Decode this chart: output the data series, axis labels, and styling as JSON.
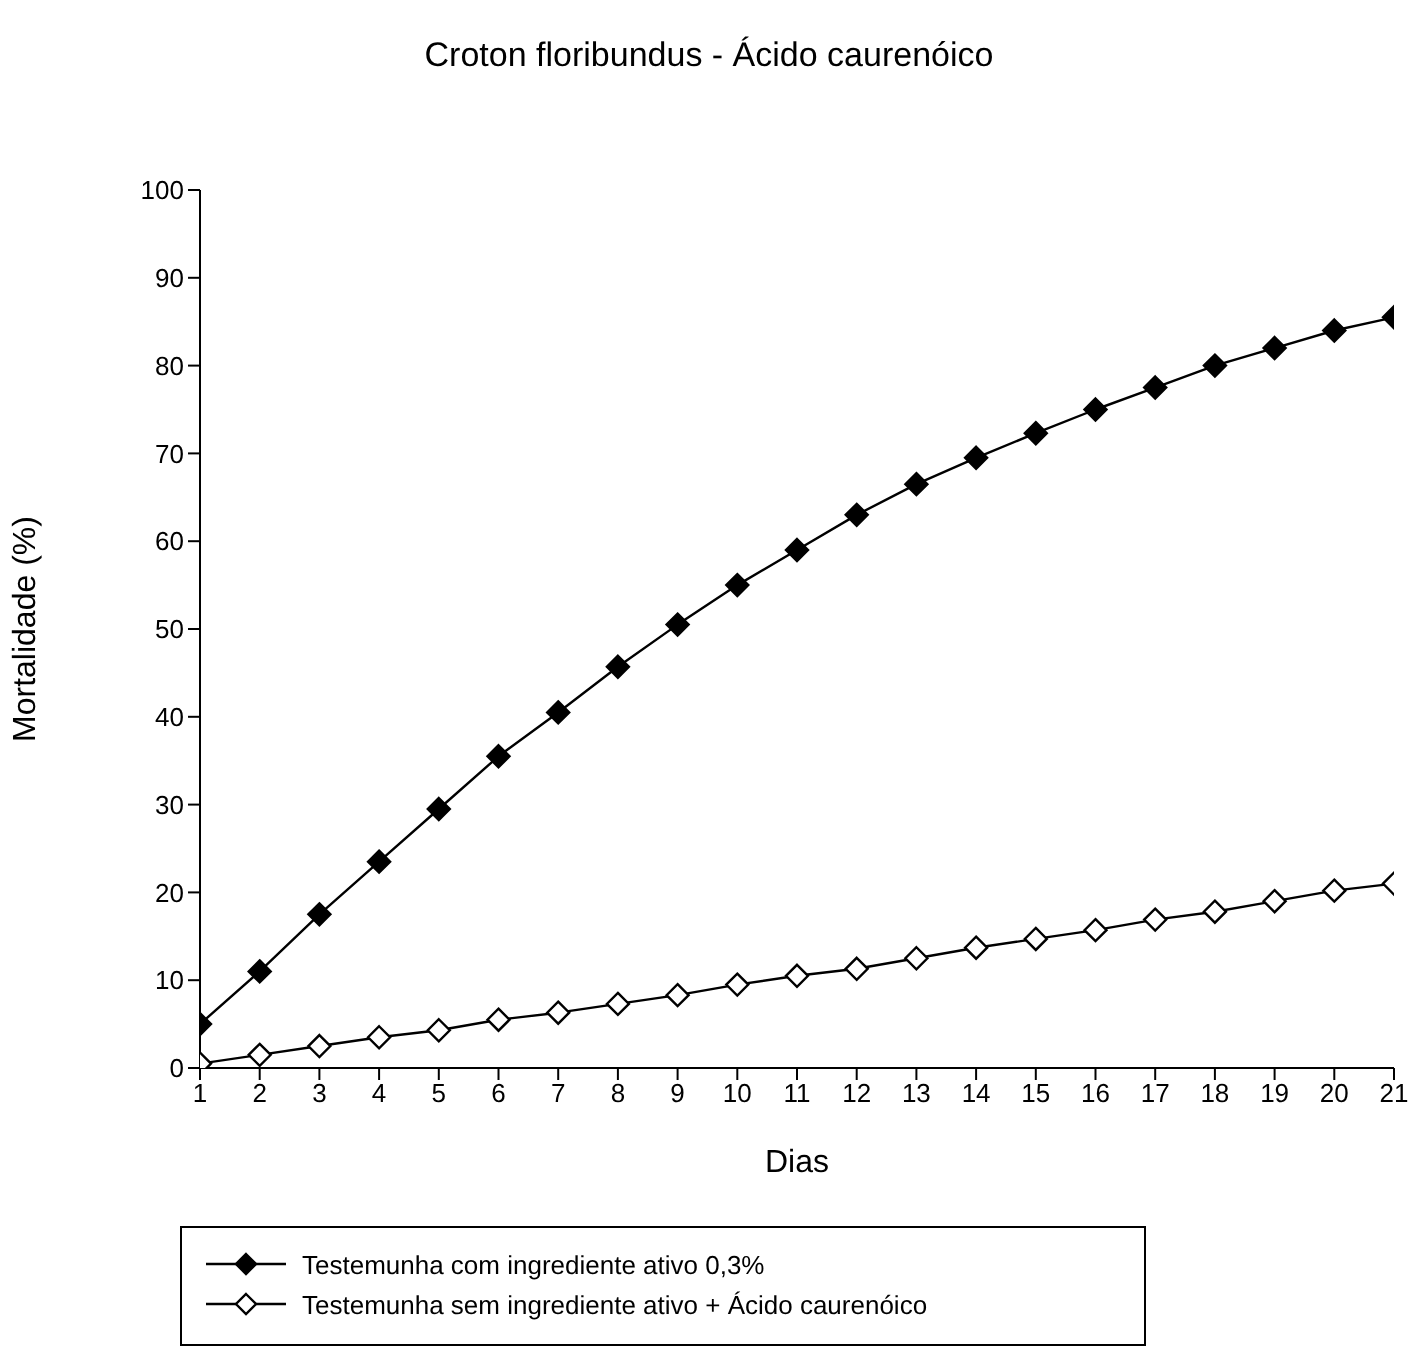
{
  "chart_data": {
    "type": "line",
    "title": "Croton floribundus - Ácido caurenóico",
    "xlabel": "Dias",
    "ylabel": "Mortalidade (%)",
    "x": [
      1,
      2,
      3,
      4,
      5,
      6,
      7,
      8,
      9,
      10,
      11,
      12,
      13,
      14,
      15,
      16,
      17,
      18,
      19,
      20,
      21
    ],
    "xlim": [
      1,
      21
    ],
    "xticks": [
      1,
      2,
      3,
      4,
      5,
      6,
      7,
      8,
      9,
      10,
      11,
      12,
      13,
      14,
      15,
      16,
      17,
      18,
      19,
      20,
      21
    ],
    "ylim": [
      0,
      100
    ],
    "yticks": [
      0,
      10,
      20,
      30,
      40,
      50,
      60,
      70,
      80,
      90,
      100
    ],
    "grid": false,
    "legend": "bottom",
    "marker": "diamond",
    "line_style": "solid",
    "series": [
      {
        "name": "Testemunha com ingrediente ativo 0,3%",
        "color": "#000000",
        "values": [
          5,
          11,
          17.5,
          23.5,
          29.5,
          35.5,
          40.5,
          45.7,
          50.5,
          55,
          59,
          63,
          66.5,
          69.5,
          72.3,
          75,
          77.5,
          80,
          82,
          84,
          85.5
        ]
      },
      {
        "name": "Testemunha sem ingrediente ativo + Ácido caurenóico",
        "color": "#000000",
        "values": [
          0.5,
          1.5,
          2.5,
          3.5,
          4.3,
          5.5,
          6.3,
          7.3,
          8.3,
          9.5,
          10.5,
          11.3,
          12.5,
          13.7,
          14.7,
          15.7,
          16.9,
          17.8,
          19,
          20.2,
          21
        ]
      }
    ]
  }
}
